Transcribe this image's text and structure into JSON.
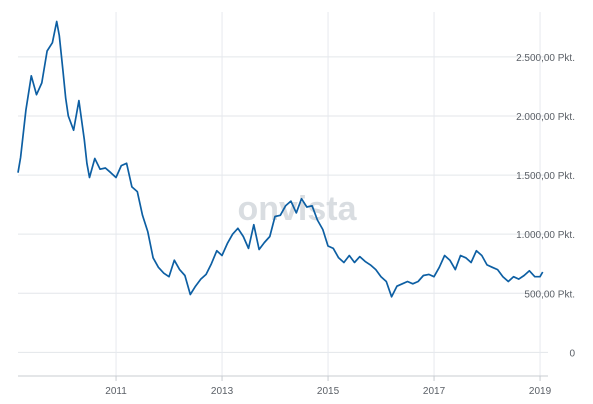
{
  "watermark": "onvista",
  "chart_data": {
    "type": "line",
    "title": "",
    "xlabel": "",
    "ylabel": "",
    "x_ticks": [
      "2011",
      "2013",
      "2015",
      "2017",
      "2019"
    ],
    "y_ticks": [
      {
        "value": 0,
        "label": "0"
      },
      {
        "value": 500,
        "label": "500,00 Pkt."
      },
      {
        "value": 1000,
        "label": "1.000,00 Pkt."
      },
      {
        "value": 1500,
        "label": "1.500,00 Pkt."
      },
      {
        "value": 2000,
        "label": "2.000,00 Pkt."
      },
      {
        "value": 2500,
        "label": "2.500,00 Pkt."
      }
    ],
    "ylim": [
      -200,
      2880
    ],
    "xlim": [
      2009.15,
      2019.15
    ],
    "grid": true,
    "legend": "none",
    "line_color": "#0d5fa3",
    "series": [
      {
        "x": [
          2009.15,
          2009.2,
          2009.3,
          2009.4,
          2009.5,
          2009.6,
          2009.7,
          2009.8,
          2009.88,
          2009.93,
          2010.0,
          2010.05,
          2010.1,
          2010.2,
          2010.3,
          2010.4,
          2010.45,
          2010.5,
          2010.6,
          2010.7,
          2010.8,
          2010.9,
          2011.0,
          2011.1,
          2011.2,
          2011.3,
          2011.4,
          2011.5,
          2011.6,
          2011.7,
          2011.8,
          2011.9,
          2012.0,
          2012.1,
          2012.2,
          2012.3,
          2012.4,
          2012.5,
          2012.6,
          2012.7,
          2012.8,
          2012.9,
          2013.0,
          2013.1,
          2013.2,
          2013.3,
          2013.4,
          2013.5,
          2013.6,
          2013.7,
          2013.8,
          2013.9,
          2014.0,
          2014.1,
          2014.2,
          2014.3,
          2014.4,
          2014.5,
          2014.6,
          2014.7,
          2014.8,
          2014.9,
          2015.0,
          2015.1,
          2015.2,
          2015.3,
          2015.4,
          2015.5,
          2015.6,
          2015.7,
          2015.8,
          2015.9,
          2016.0,
          2016.1,
          2016.2,
          2016.3,
          2016.4,
          2016.5,
          2016.6,
          2016.7,
          2016.8,
          2016.9,
          2017.0,
          2017.1,
          2017.2,
          2017.3,
          2017.4,
          2017.5,
          2017.6,
          2017.7,
          2017.8,
          2017.9,
          2018.0,
          2018.1,
          2018.2,
          2018.3,
          2018.4,
          2018.5,
          2018.6,
          2018.7,
          2018.8,
          2018.9,
          2019.0,
          2019.05
        ],
        "y": [
          1520,
          1650,
          2050,
          2340,
          2180,
          2280,
          2550,
          2620,
          2800,
          2680,
          2380,
          2150,
          2000,
          1880,
          2130,
          1800,
          1600,
          1480,
          1640,
          1550,
          1560,
          1520,
          1480,
          1580,
          1600,
          1400,
          1360,
          1160,
          1020,
          800,
          720,
          670,
          640,
          780,
          700,
          650,
          490,
          560,
          620,
          660,
          750,
          860,
          820,
          920,
          1000,
          1050,
          980,
          880,
          1080,
          870,
          930,
          980,
          1150,
          1160,
          1240,
          1280,
          1180,
          1300,
          1230,
          1240,
          1120,
          1040,
          900,
          880,
          800,
          760,
          820,
          760,
          810,
          770,
          740,
          700,
          640,
          600,
          470,
          560,
          580,
          600,
          580,
          600,
          650,
          660,
          640,
          720,
          820,
          780,
          700,
          820,
          800,
          760,
          860,
          820,
          740,
          720,
          700,
          640,
          600,
          640,
          620,
          650,
          690,
          640,
          640,
          680
        ]
      }
    ]
  }
}
